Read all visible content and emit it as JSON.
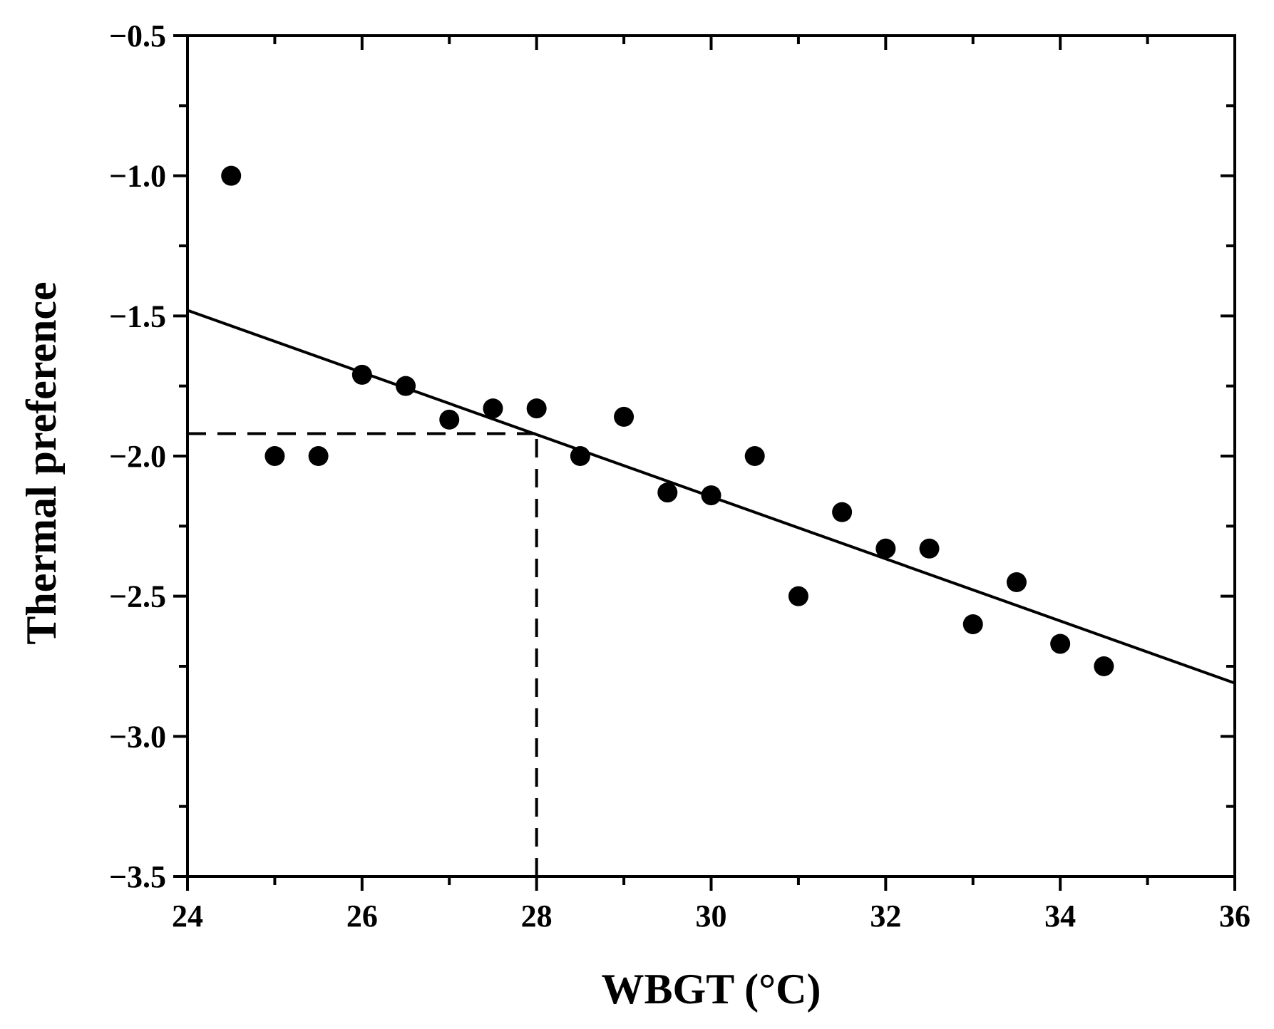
{
  "chart_data": {
    "type": "scatter",
    "title": "",
    "xlabel": "WBGT (°C)",
    "ylabel": "Thermal preference",
    "xlim": [
      24,
      36
    ],
    "ylim": [
      -3.5,
      -0.5
    ],
    "x_ticks": [
      24,
      26,
      28,
      30,
      32,
      34,
      36
    ],
    "x_tick_labels": [
      "24",
      "26",
      "28",
      "30",
      "32",
      "34",
      "36"
    ],
    "y_ticks": [
      -0.5,
      -1.0,
      -1.5,
      -2.0,
      -2.5,
      -3.0,
      -3.5
    ],
    "y_tick_labels": [
      "−0.5",
      "−1.0",
      "−1.5",
      "−2.0",
      "−2.5",
      "−3.0",
      "−3.5"
    ],
    "grid": false,
    "series": [
      {
        "name": "Thermal preference",
        "marker": "filled-circle",
        "color": "#000000",
        "x": [
          24.5,
          25,
          25.5,
          26,
          26.5,
          27,
          27.5,
          28,
          28.5,
          29,
          29.5,
          30,
          30.5,
          31,
          31.5,
          32,
          32.5,
          33,
          33.5,
          34,
          34.5
        ],
        "y": [
          -1.0,
          -2.0,
          -2.0,
          -1.71,
          -1.75,
          -1.87,
          -1.83,
          -1.83,
          -2.0,
          -1.86,
          -2.13,
          -2.14,
          -2.0,
          -2.5,
          -2.2,
          -2.33,
          -2.33,
          -2.6,
          -2.45,
          -2.67,
          -2.75
        ]
      }
    ],
    "fit_line": {
      "style": "solid",
      "color": "#000000",
      "x": [
        24,
        36
      ],
      "y": [
        -1.48,
        -2.81
      ]
    },
    "reference_lines": [
      {
        "style": "dashed",
        "x": [
          24,
          28
        ],
        "y": [
          -1.92,
          -1.92
        ]
      },
      {
        "style": "dashed",
        "x": [
          28,
          28
        ],
        "y": [
          -3.5,
          -1.92
        ]
      }
    ]
  }
}
